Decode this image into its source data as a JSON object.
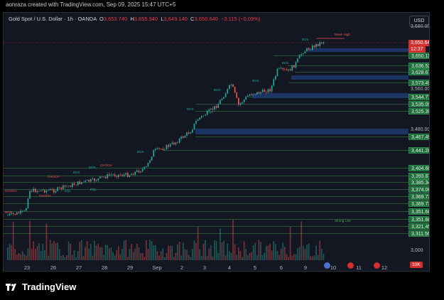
{
  "header": {
    "created_text": "aonraza created with TradingView.com, Sep 09, 2025 15:47 UTC+5"
  },
  "legend": {
    "symbol": "Gold Spot / U.S. Dollar · 1h · OANDA",
    "o_label": "O",
    "o_value": "3,653.740",
    "h_label": "H",
    "h_value": "3,655.940",
    "l_label": "L",
    "l_value": "3,649.140",
    "c_label": "C",
    "c_value": "3,650.640",
    "change": "−3.115 (−0.09%)"
  },
  "currency_button": "USD",
  "price_scale": {
    "top_label": "3,680.000",
    "current_price": "3,650.640",
    "countdown": "12:37",
    "levels": [
      "3,650.115",
      "3,636.525",
      "3,628.677",
      "3,573.491",
      "3,560.000",
      "3,544.719",
      "3,535.091",
      "3,525.392",
      "3,480.000",
      "3,467.498",
      "3,441.283",
      "3,404.667",
      "3,393.873",
      "3,385.346",
      "3,374.068",
      "3,369.735",
      "3,369.735",
      "3,351.680",
      "3,351.680",
      "3,321.450",
      "3,311.560"
    ],
    "bottom_label": "3,000"
  },
  "time_axis": [
    "23",
    "26",
    "27",
    "28",
    "29",
    "Sep",
    "2",
    "3",
    "4",
    "5",
    "6",
    "9",
    "10",
    "11",
    "12"
  ],
  "annotations": {
    "week_high": "Week High",
    "strong_low": "Strong Low",
    "bos": "BOS",
    "choch": "CHOCH",
    "eql": "EQL"
  },
  "volume_badge": "10K",
  "footer": {
    "brand": "TradingView"
  },
  "colors": {
    "up": "#26a69a",
    "down": "#ef5350",
    "zone": "#1e3a6e",
    "level": "#4caf50"
  }
}
